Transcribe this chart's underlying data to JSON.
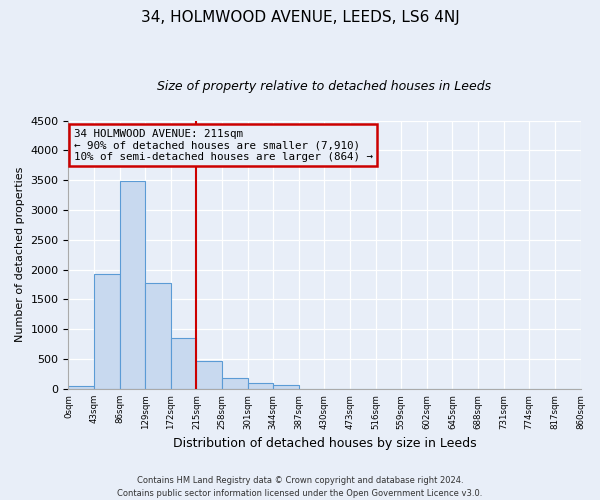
{
  "title": "34, HOLMWOOD AVENUE, LEEDS, LS6 4NJ",
  "subtitle": "Size of property relative to detached houses in Leeds",
  "xlabel": "Distribution of detached houses by size in Leeds",
  "ylabel": "Number of detached properties",
  "bin_labels": [
    "0sqm",
    "43sqm",
    "86sqm",
    "129sqm",
    "172sqm",
    "215sqm",
    "258sqm",
    "301sqm",
    "344sqm",
    "387sqm",
    "430sqm",
    "473sqm",
    "516sqm",
    "559sqm",
    "602sqm",
    "645sqm",
    "688sqm",
    "731sqm",
    "774sqm",
    "817sqm",
    "860sqm"
  ],
  "bar_values": [
    50,
    1920,
    3490,
    1770,
    850,
    460,
    175,
    100,
    60,
    0,
    0,
    0,
    0,
    0,
    0,
    0,
    0,
    0,
    0,
    0
  ],
  "bar_color": "#c8d9ef",
  "bar_edge_color": "#5b9bd5",
  "vline_x": 5,
  "vline_color": "#cc0000",
  "ylim": [
    0,
    4500
  ],
  "yticks": [
    0,
    500,
    1000,
    1500,
    2000,
    2500,
    3000,
    3500,
    4000,
    4500
  ],
  "annotation_title": "34 HOLMWOOD AVENUE: 211sqm",
  "annotation_line1": "← 90% of detached houses are smaller (7,910)",
  "annotation_line2": "10% of semi-detached houses are larger (864) →",
  "annotation_box_color": "#cc0000",
  "footer_line1": "Contains HM Land Registry data © Crown copyright and database right 2024.",
  "footer_line2": "Contains public sector information licensed under the Open Government Licence v3.0.",
  "bg_color": "#e8eef8",
  "plot_bg_color": "#e8eef8",
  "grid_color": "#ffffff"
}
